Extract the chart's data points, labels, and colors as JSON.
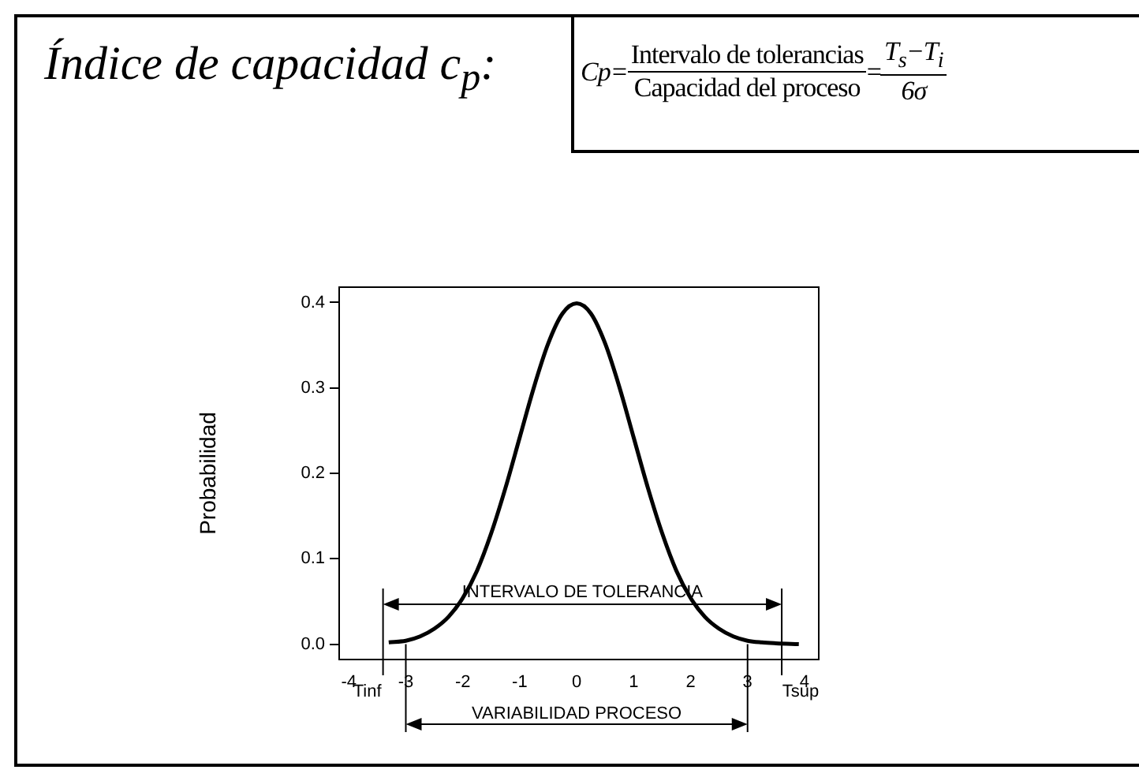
{
  "chart_data": {
    "type": "line",
    "title": "Índice de capacidad c$_{p}$:",
    "ylabel": "Probabilidad",
    "annotations": [
      "Cp=",
      "Intervalo de tolerancias",
      "Capacidad del proceso",
      "=",
      "T$_{s}$−T$_{i}$",
      "6σ",
      "INTERVALO DE TOLERANCIA",
      "VARIABILIDAD PROCESO"
    ],
    "x": [
      -3.3,
      -3,
      -2.75,
      -2.5,
      -2.25,
      -2,
      -1.75,
      -1.5,
      -1.25,
      -1,
      -0.75,
      -0.5,
      -0.25,
      0,
      0.25,
      0.5,
      0.75,
      1,
      1.25,
      1.5,
      1.75,
      2,
      2.25,
      2.5,
      2.75,
      3,
      3.25,
      3.5,
      3.9
    ],
    "series": [
      {
        "color": "#000000",
        "values": [
          0.002,
          0.004,
          0.009,
          0.018,
          0.032,
          0.054,
          0.086,
          0.13,
          0.183,
          0.242,
          0.301,
          0.352,
          0.387,
          0.399,
          0.387,
          0.352,
          0.301,
          0.242,
          0.183,
          0.13,
          0.086,
          0.054,
          0.032,
          0.018,
          0.009,
          0.004,
          0.002,
          0.001,
          0.0
        ]
      }
    ],
    "xlim": [
      -4.17,
      4.25
    ],
    "xticks": [
      -4,
      -3,
      -2,
      -1,
      0,
      1,
      2,
      3,
      4
    ],
    "ylim": [
      -0.018,
      0.418
    ],
    "yticks": [
      {
        "value": 0,
        "label": "0.0"
      },
      {
        "value": 0.1,
        "label": "0.1"
      },
      {
        "value": 0.2,
        "label": "0.2"
      },
      {
        "value": 0.3,
        "label": "0.3"
      },
      {
        "value": 0.4,
        "label": "0.4"
      }
    ],
    "ref_lines": [
      {
        "axis": "x",
        "value": -3.4,
        "label": "Tinf"
      },
      {
        "axis": "x",
        "value": 3.6,
        "label": "Tsup"
      }
    ],
    "grid": false,
    "legend": false,
    "marker": "none",
    "line_style": "solid"
  }
}
